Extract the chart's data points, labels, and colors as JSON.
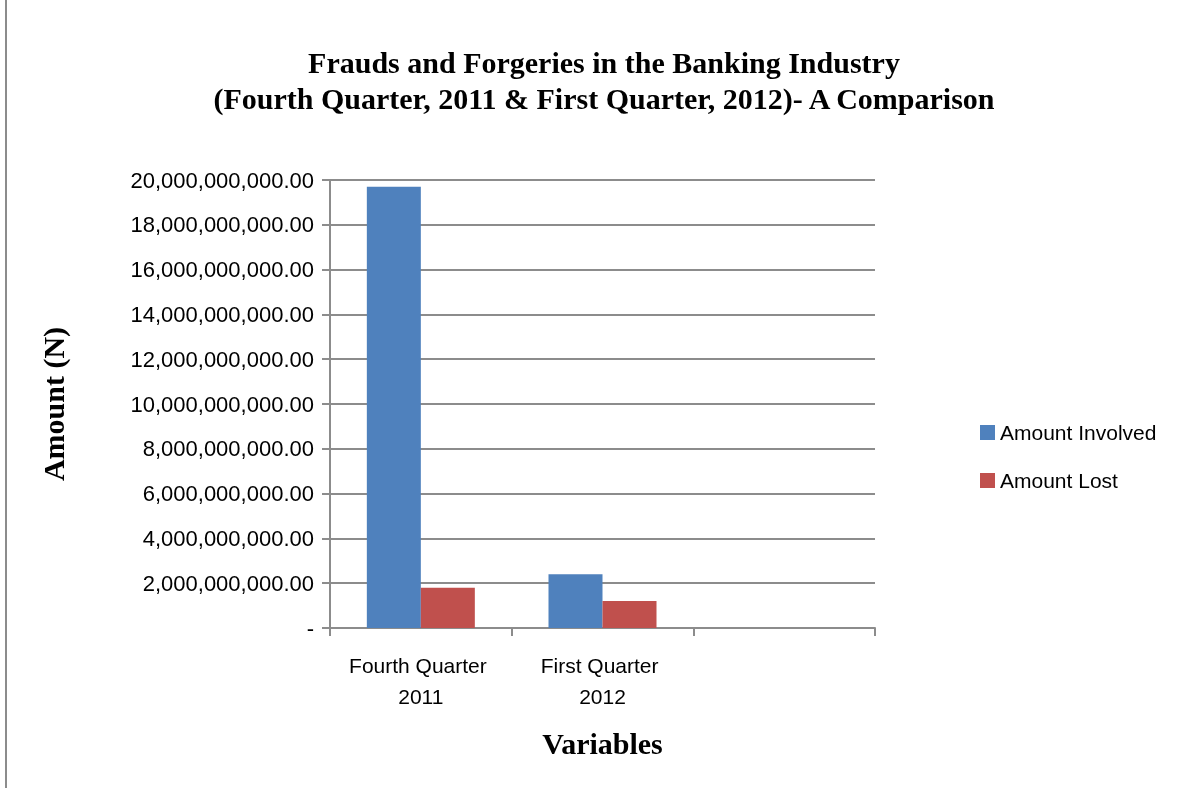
{
  "chart_data": {
    "type": "bar",
    "title": "Frauds and Forgeries in the Banking Industry",
    "subtitle": "(Fourth Quarter, 2011 & First Quarter, 2012)- A Comparison",
    "xlabel": "Variables",
    "ylabel": "Amount (N)",
    "categories": [
      "Fourth Quarter 2011",
      "First Quarter 2012",
      null
    ],
    "series": [
      {
        "name": "Amount Involved",
        "color": "#4f81bd",
        "values": [
          19700000000,
          2400000000,
          null
        ]
      },
      {
        "name": "Amount Lost",
        "color": "#c0504d",
        "values": [
          1800000000,
          1200000000,
          null
        ]
      }
    ],
    "ylim": [
      0,
      20000000000
    ],
    "yticks": [
      {
        "value": 0,
        "label": "-"
      },
      {
        "value": 2000000000,
        "label": "2,000,000,000.00"
      },
      {
        "value": 4000000000,
        "label": "4,000,000,000.00"
      },
      {
        "value": 6000000000,
        "label": "6,000,000,000.00"
      },
      {
        "value": 8000000000,
        "label": "8,000,000,000.00"
      },
      {
        "value": 10000000000,
        "label": "10,000,000,000.00"
      },
      {
        "value": 12000000000,
        "label": "12,000,000,000.00"
      },
      {
        "value": 14000000000,
        "label": "14,000,000,000.00"
      },
      {
        "value": 16000000000,
        "label": "16,000,000,000.00"
      },
      {
        "value": 18000000000,
        "label": "18,000,000,000.00"
      },
      {
        "value": 20000000000,
        "label": "20,000,000,000.00"
      }
    ],
    "grid": "y",
    "legend": "right"
  }
}
